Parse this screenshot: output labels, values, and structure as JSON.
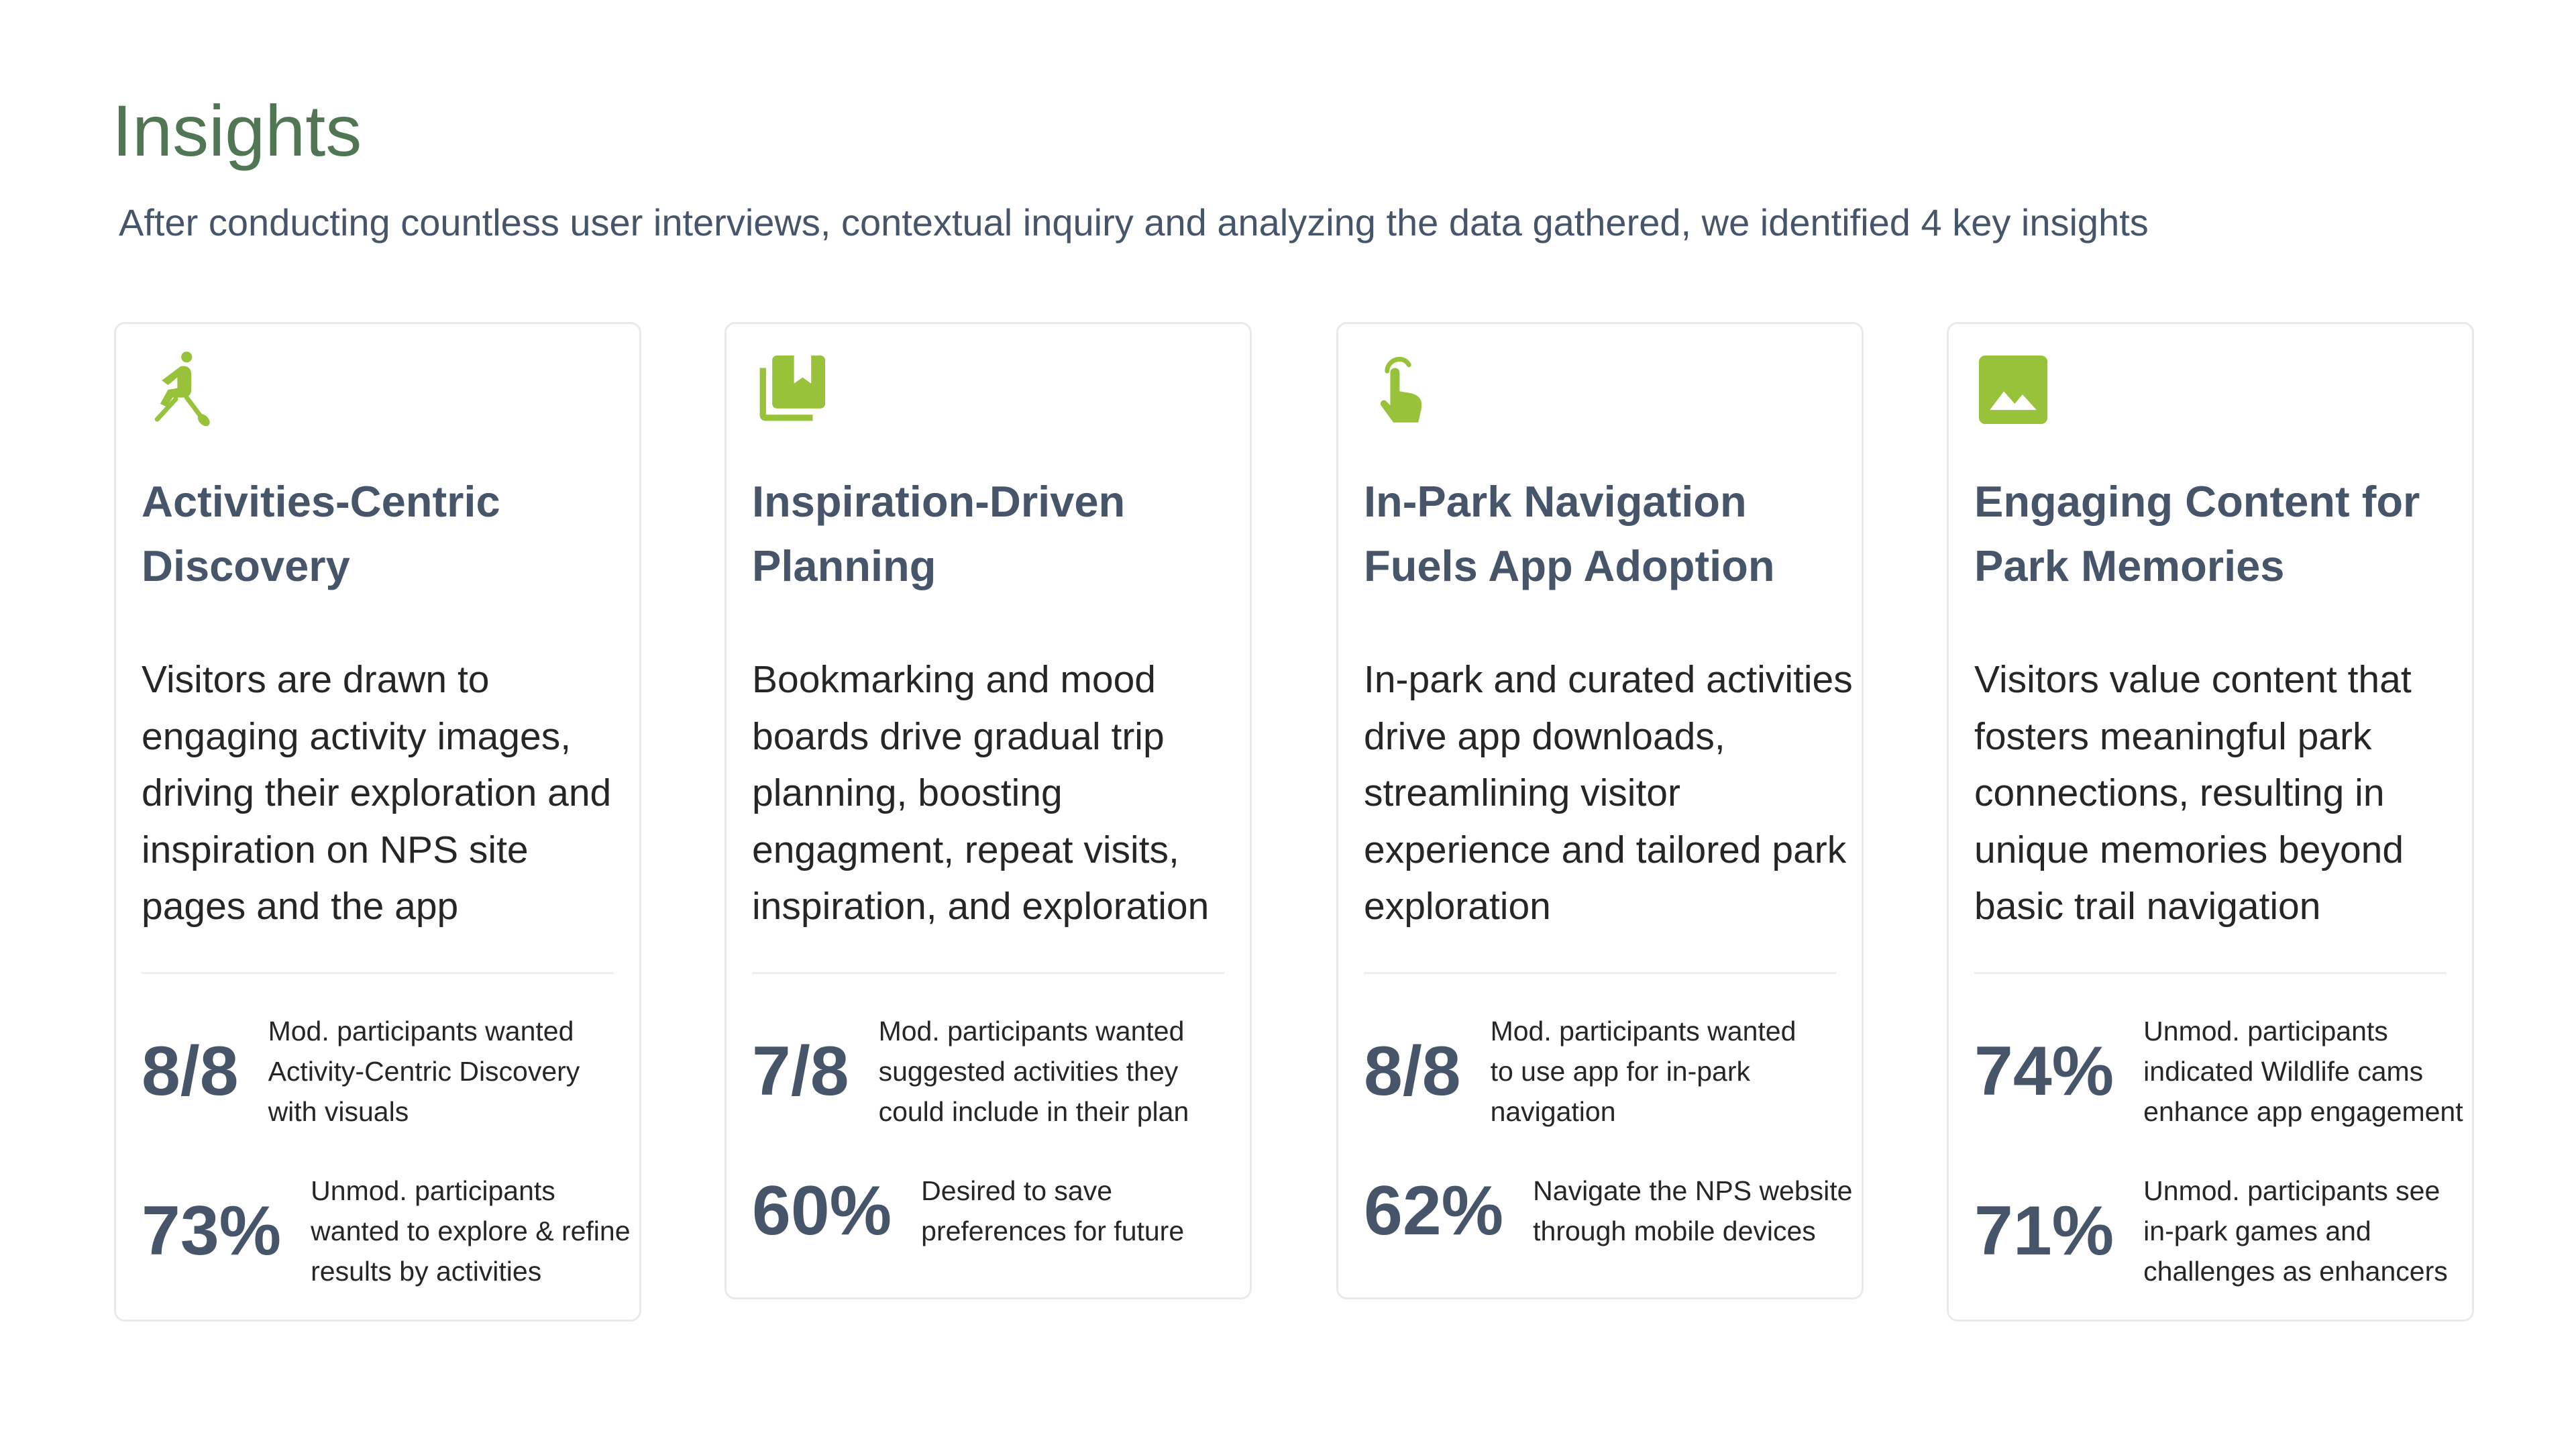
{
  "header": {
    "title": "Insights",
    "subtitle": "After conducting countless user interviews, contextual inquiry and analyzing the data gathered, we identified 4 key insights"
  },
  "accent_color": "#97c23a",
  "title_color": "#517653",
  "cards": [
    {
      "icon": "kayaking-icon",
      "title": "Activities-Centric Discovery",
      "description": "Visitors are drawn to engaging activity images, driving their exploration and inspiration on NPS site pages and the app",
      "stats": [
        {
          "value": "8/8",
          "label": "Mod. participants wanted Activity-Centric Discovery with visuals"
        },
        {
          "value": "73%",
          "label": "Unmod. participants wanted to explore & refine results by activities"
        }
      ]
    },
    {
      "icon": "bookmarks-icon",
      "title": "Inspiration-Driven Planning",
      "description": "Bookmarking and mood boards drive gradual trip planning, boosting engagment, repeat visits, inspiration, and exploration",
      "stats": [
        {
          "value": "7/8",
          "label": "Mod. participants wanted suggested activities they could include in their plan"
        },
        {
          "value": "60%",
          "label": "Desired to save preferences for future"
        }
      ]
    },
    {
      "icon": "touch-icon",
      "title": "In-Park Navigation Fuels App Adoption",
      "description": "In-park and curated activities drive app downloads, streamlining visitor experience and tailored park exploration",
      "stats": [
        {
          "value": "8/8",
          "label": "Mod. participants wanted to use app for in-park navigation"
        },
        {
          "value": "62%",
          "label": "Navigate the NPS website through mobile devices"
        }
      ]
    },
    {
      "icon": "image-icon",
      "title": "Engaging Content for Park Memories",
      "description": "Visitors value content that fosters meaningful park connections, resulting in unique memories beyond basic trail navigation",
      "stats": [
        {
          "value": "74%",
          "label": "Unmod. participants indicated Wildlife cams enhance app engagement"
        },
        {
          "value": "71%",
          "label": "Unmod. participants see in-park games and challenges as enhancers"
        }
      ]
    }
  ]
}
